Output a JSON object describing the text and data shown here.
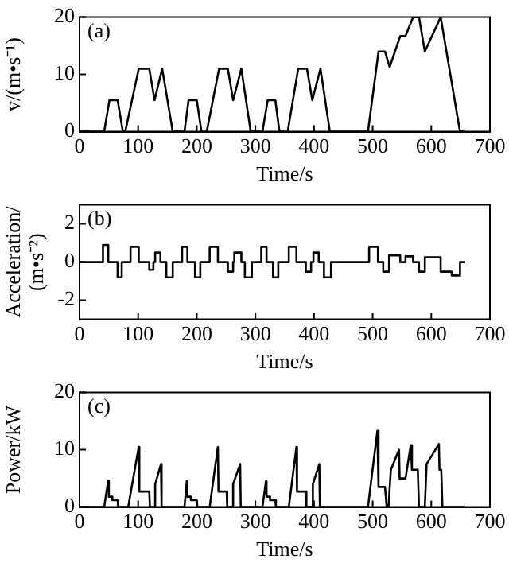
{
  "chart_data": [
    {
      "type": "line",
      "xlabel": "Time/s",
      "ylabel": "v/(m•s⁻¹)",
      "annotations": [
        "(a)"
      ],
      "xlim": [
        0,
        700
      ],
      "xticks": [
        0,
        100,
        200,
        300,
        400,
        500,
        600,
        700
      ],
      "ylim": [
        0,
        20
      ],
      "yticks": [
        0,
        10,
        20
      ],
      "grid": false,
      "legend": false,
      "marker": "none",
      "line_style": "solid",
      "series": [
        {
          "color": "#000000",
          "x": [
            0,
            42,
            51,
            65,
            74,
            78,
            101,
            119,
            128,
            141,
            159,
            179,
            186,
            200,
            208,
            217,
            238,
            253,
            262,
            276,
            292,
            312,
            321,
            334,
            341,
            355,
            373,
            388,
            397,
            411,
            427,
            492,
            510,
            521,
            529,
            547,
            556,
            569,
            579,
            589,
            616,
            649,
            658
          ],
          "values": [
            0,
            0,
            5.5,
            5.5,
            0,
            0,
            11,
            11,
            5.5,
            11,
            0,
            0,
            5.5,
            5.5,
            0,
            0,
            11,
            11,
            5.5,
            11,
            0,
            0,
            5.5,
            5.5,
            0,
            0,
            11,
            11,
            5.5,
            11,
            0,
            0,
            14,
            14,
            11.3,
            16.7,
            16.7,
            20,
            20,
            14,
            20,
            0,
            0
          ]
        }
      ]
    },
    {
      "type": "line",
      "xlabel": "Time/s",
      "ylabel": "Acceleration/(m•s⁻²)",
      "annotations": [
        "(b)"
      ],
      "xlim": [
        0,
        700
      ],
      "xticks": [
        0,
        100,
        200,
        300,
        400,
        500,
        600,
        700
      ],
      "ylim": [
        -3,
        3
      ],
      "yticks": [
        -2,
        0,
        2
      ],
      "grid": false,
      "legend": false,
      "marker": "none",
      "line_style": "solid",
      "series": [
        {
          "color": "#000000",
          "x": [
            0,
            40,
            40,
            49,
            49,
            65,
            65,
            72,
            72,
            87,
            87,
            101,
            101,
            119,
            119,
            126,
            126,
            129,
            129,
            138,
            138,
            148,
            148,
            159,
            159,
            175,
            175,
            184,
            184,
            197,
            197,
            206,
            206,
            222,
            222,
            236,
            236,
            253,
            253,
            262,
            262,
            264,
            264,
            276,
            276,
            282,
            282,
            294,
            294,
            310,
            310,
            319,
            319,
            330,
            330,
            339,
            339,
            357,
            357,
            370,
            370,
            386,
            386,
            395,
            395,
            399,
            399,
            408,
            408,
            417,
            417,
            429,
            429,
            494,
            494,
            509,
            509,
            518,
            518,
            528,
            528,
            547,
            547,
            556,
            556,
            569,
            569,
            579,
            579,
            589,
            589,
            616,
            616,
            635,
            635,
            649,
            649,
            658
          ],
          "values": [
            0,
            0,
            0.9,
            0.9,
            0,
            0,
            -0.8,
            -0.8,
            0,
            0,
            0.8,
            0.8,
            0,
            0,
            -0.4,
            -0.4,
            0,
            0,
            0.5,
            0.5,
            0,
            0,
            -0.8,
            -0.8,
            0,
            0,
            0.8,
            0.8,
            0,
            0,
            -0.8,
            -0.8,
            0,
            0,
            0.8,
            0.8,
            0,
            0,
            -0.5,
            -0.5,
            0,
            0,
            0.5,
            0.5,
            0,
            0,
            -0.8,
            -0.8,
            0,
            0,
            0.8,
            0.8,
            0,
            0,
            -0.8,
            -0.8,
            0,
            0,
            0.8,
            0.8,
            0,
            0,
            -0.5,
            -0.5,
            0,
            0,
            0.5,
            0.5,
            0,
            0,
            -0.8,
            -0.8,
            0,
            0,
            0.8,
            0.8,
            0,
            0,
            -0.5,
            -0.5,
            0.35,
            0.35,
            0,
            0,
            0.3,
            0.3,
            0,
            0,
            -0.5,
            -0.5,
            0.25,
            0.25,
            -0.5,
            -0.5,
            -0.7,
            -0.7,
            0,
            0
          ]
        }
      ]
    },
    {
      "type": "line",
      "xlabel": "Time/s",
      "ylabel": "Power/kW",
      "annotations": [
        "(c)"
      ],
      "xlim": [
        0,
        700
      ],
      "xticks": [
        0,
        100,
        200,
        300,
        400,
        500,
        600,
        700
      ],
      "ylim": [
        0,
        20
      ],
      "yticks": [
        0,
        10,
        20
      ],
      "grid": false,
      "legend": false,
      "marker": "none",
      "line_style": "solid",
      "series": [
        {
          "color": "#000000",
          "x": [
            0,
            42,
            49,
            50,
            56,
            56,
            65,
            66,
            83,
            101,
            102,
            119,
            120,
            128,
            129,
            139,
            140,
            179,
            183,
            184,
            190,
            190,
            200,
            201,
            222,
            236,
            237,
            251,
            252,
            261,
            262,
            274,
            275,
            312,
            318,
            319,
            325,
            325,
            334,
            335,
            357,
            370,
            371,
            386,
            387,
            397,
            398,
            409,
            410,
            492,
            508,
            510,
            521,
            524,
            527,
            531,
            545,
            546,
            556,
            565,
            567,
            577,
            579,
            589,
            592,
            613,
            614,
            617,
            619,
            658
          ],
          "values": [
            0,
            0,
            4.6,
            1.8,
            1.8,
            1.2,
            1.2,
            0,
            0,
            10.5,
            2.7,
            2.7,
            0,
            0,
            4,
            7.5,
            0,
            0,
            4.5,
            1.8,
            1.8,
            1.2,
            1.2,
            0,
            0,
            10.5,
            2.7,
            2.7,
            0,
            0,
            4,
            7.5,
            0,
            0,
            4.5,
            1.8,
            1.8,
            1.2,
            1.2,
            0,
            0,
            10.5,
            2.7,
            2.7,
            0,
            0,
            4,
            7.5,
            0,
            0,
            13.3,
            3.5,
            3.5,
            0,
            0,
            6.5,
            10,
            5,
            5,
            10.8,
            6.5,
            6.5,
            0,
            0,
            7.5,
            11,
            6.5,
            6.5,
            0,
            0
          ]
        }
      ]
    }
  ]
}
